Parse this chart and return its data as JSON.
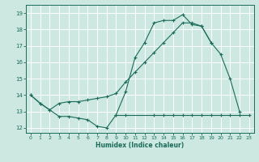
{
  "xlabel": "Humidex (Indice chaleur)",
  "xlim": [
    -0.5,
    23.5
  ],
  "ylim": [
    11.7,
    19.5
  ],
  "yticks": [
    12,
    13,
    14,
    15,
    16,
    17,
    18,
    19
  ],
  "xticks": [
    0,
    1,
    2,
    3,
    4,
    5,
    6,
    7,
    8,
    9,
    10,
    11,
    12,
    13,
    14,
    15,
    16,
    17,
    18,
    19,
    20,
    21,
    22,
    23
  ],
  "bg_color": "#cce8e0",
  "grid_color": "#ffffff",
  "line_color": "#1a6b5a",
  "line1_x": [
    0,
    1,
    2,
    3,
    4,
    5,
    6,
    7,
    8,
    9,
    10,
    11,
    12,
    13,
    14,
    15,
    16,
    17,
    18,
    19,
    20,
    21,
    22
  ],
  "line1_y": [
    14.0,
    13.5,
    13.1,
    12.7,
    12.7,
    12.6,
    12.5,
    12.1,
    12.0,
    12.8,
    14.2,
    16.3,
    17.2,
    18.4,
    18.55,
    18.55,
    18.9,
    18.3,
    18.2,
    17.2,
    16.5,
    15.0,
    13.0
  ],
  "line2_x": [
    0,
    1,
    2,
    3,
    4,
    5,
    6,
    7,
    8,
    9,
    10,
    11,
    12,
    13,
    14,
    15,
    16,
    17,
    18,
    19
  ],
  "line2_y": [
    14.0,
    13.5,
    13.1,
    13.5,
    13.6,
    13.6,
    13.7,
    13.8,
    13.9,
    14.1,
    14.8,
    15.4,
    16.0,
    16.6,
    17.2,
    17.8,
    18.4,
    18.4,
    18.2,
    17.2
  ],
  "line3_x": [
    9,
    10,
    13,
    14,
    15,
    16,
    17,
    18,
    19,
    20,
    21,
    22,
    23
  ],
  "line3_y": [
    12.8,
    12.8,
    12.8,
    12.8,
    12.8,
    12.8,
    12.8,
    12.8,
    12.8,
    12.8,
    12.8,
    12.8,
    12.8
  ]
}
